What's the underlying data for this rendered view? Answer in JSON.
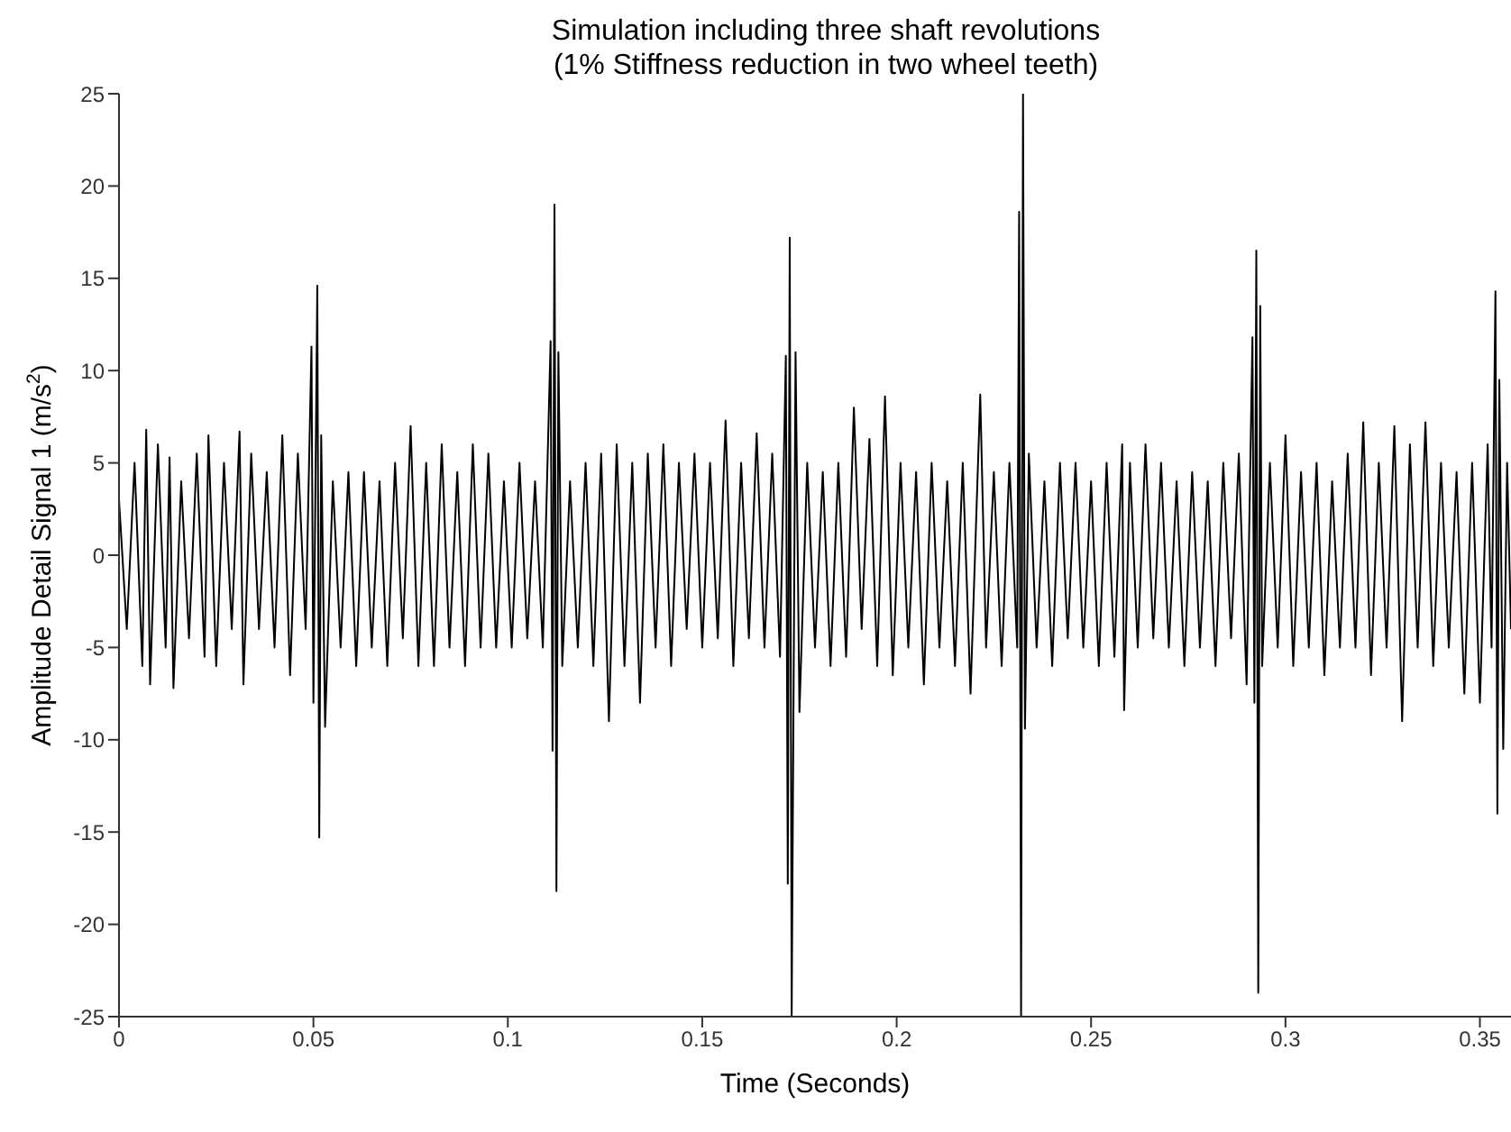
{
  "chart_data": {
    "type": "line",
    "title": "Simulation including three shaft revolutions",
    "subtitle": "(1% Stiffness reduction in two wheel teeth)",
    "xlabel": "Time (Seconds)",
    "ylabel": "Amplitude Detail Signal 1 (m/s$^{2}$)",
    "x": [
      0,
      0.002,
      0.004,
      0.006,
      0.007,
      0.008,
      0.01,
      0.012,
      0.013,
      0.014,
      0.016,
      0.018,
      0.02,
      0.022,
      0.023,
      0.025,
      0.027,
      0.029,
      0.031,
      0.032,
      0.034,
      0.036,
      0.038,
      0.04,
      0.042,
      0.044,
      0.046,
      0.048,
      0.0495,
      0.05,
      0.051,
      0.0515,
      0.052,
      0.053,
      0.055,
      0.057,
      0.059,
      0.061,
      0.063,
      0.065,
      0.067,
      0.069,
      0.071,
      0.073,
      0.075,
      0.077,
      0.079,
      0.081,
      0.083,
      0.085,
      0.087,
      0.089,
      0.091,
      0.093,
      0.095,
      0.097,
      0.099,
      0.101,
      0.103,
      0.105,
      0.107,
      0.109,
      0.111,
      0.1115,
      0.112,
      0.1125,
      0.113,
      0.114,
      0.116,
      0.118,
      0.12,
      0.122,
      0.124,
      0.126,
      0.128,
      0.13,
      0.132,
      0.134,
      0.136,
      0.138,
      0.14,
      0.142,
      0.144,
      0.146,
      0.148,
      0.15,
      0.152,
      0.154,
      0.156,
      0.158,
      0.16,
      0.162,
      0.164,
      0.166,
      0.168,
      0.17,
      0.1715,
      0.172,
      0.1725,
      0.173,
      0.174,
      0.175,
      0.177,
      0.179,
      0.181,
      0.183,
      0.185,
      0.187,
      0.189,
      0.191,
      0.193,
      0.195,
      0.197,
      0.199,
      0.201,
      0.203,
      0.205,
      0.207,
      0.209,
      0.211,
      0.213,
      0.215,
      0.217,
      0.219,
      0.2215,
      0.223,
      0.225,
      0.227,
      0.229,
      0.231,
      0.2315,
      0.232,
      0.2325,
      0.233,
      0.234,
      0.236,
      0.238,
      0.24,
      0.242,
      0.244,
      0.246,
      0.248,
      0.25,
      0.252,
      0.254,
      0.256,
      0.258,
      0.2585,
      0.26,
      0.262,
      0.264,
      0.266,
      0.268,
      0.27,
      0.272,
      0.274,
      0.276,
      0.278,
      0.28,
      0.282,
      0.284,
      0.286,
      0.288,
      0.29,
      0.2915,
      0.292,
      0.2925,
      0.293,
      0.2935,
      0.294,
      0.296,
      0.298,
      0.3,
      0.302,
      0.304,
      0.306,
      0.308,
      0.31,
      0.312,
      0.314,
      0.316,
      0.318,
      0.32,
      0.322,
      0.324,
      0.326,
      0.328,
      0.33,
      0.332,
      0.334,
      0.336,
      0.338,
      0.34,
      0.342,
      0.344,
      0.346,
      0.348,
      0.35,
      0.352,
      0.353,
      0.354,
      0.3545,
      0.355,
      0.356,
      0.357,
      0.358
    ],
    "series": [
      {
        "color": "#000000",
        "values": [
          3,
          -4,
          5,
          -6,
          6.8,
          -7,
          6,
          -5,
          5.3,
          -7.2,
          4,
          -4.5,
          5.5,
          -5.5,
          6.5,
          -6,
          5,
          -4,
          6.7,
          -7,
          5.5,
          -4,
          4.5,
          -5,
          6.5,
          -6.5,
          5.5,
          -4,
          11.3,
          -8,
          14.6,
          -15.3,
          6.5,
          -9.3,
          4,
          -5,
          4.5,
          -6,
          4.5,
          -5,
          4,
          -6,
          5,
          -4.5,
          7,
          -6,
          5,
          -6,
          6,
          -5,
          4.5,
          -6,
          6,
          -5,
          5.5,
          -5,
          4,
          -5,
          5,
          -4.5,
          4,
          -5,
          11.6,
          -10.6,
          19,
          -18.2,
          11,
          -6,
          4,
          -5,
          5,
          -6,
          5.5,
          -9,
          6,
          -6,
          5,
          -8,
          5.5,
          -5,
          6,
          -6,
          5,
          -4,
          5.5,
          -5,
          5,
          -4.5,
          7.3,
          -6,
          5,
          -4.5,
          6.6,
          -5,
          5.5,
          -5.5,
          10.8,
          -17.8,
          17.2,
          -25,
          11,
          -8.5,
          5,
          -5,
          4.5,
          -6,
          5,
          -5.5,
          8,
          -4,
          6.3,
          -6,
          8.6,
          -6.5,
          5,
          -5,
          4.5,
          -7,
          5,
          -5,
          4,
          -6,
          5,
          -7.5,
          8.7,
          -5,
          4.5,
          -6,
          5,
          -5,
          18.6,
          -25,
          25,
          -9.4,
          5.5,
          -5,
          4,
          -6,
          5,
          -4.5,
          5,
          -5,
          4,
          -6,
          5,
          -5.5,
          6,
          -8.4,
          5,
          -5,
          6,
          -4.5,
          5,
          -5,
          4,
          -6,
          4.5,
          -5,
          4,
          -6,
          5,
          -4.5,
          5.5,
          -7,
          11.8,
          -8,
          16.5,
          -23.7,
          13.5,
          -6,
          5,
          -5,
          6.5,
          -6,
          4.5,
          -5,
          5,
          -6.5,
          4,
          -5,
          5.5,
          -5,
          7.2,
          -6.5,
          5,
          -5,
          7,
          -9,
          6,
          -5,
          7.2,
          -6,
          5,
          -5,
          4.5,
          -7.5,
          5,
          -8,
          6,
          -5,
          14.3,
          -14,
          9.5,
          -10.5,
          5,
          -4
        ]
      }
    ],
    "xlim": [
      0,
      0.358
    ],
    "xticks": [
      0,
      0.05,
      0.1,
      0.15,
      0.2,
      0.25,
      0.3,
      0.35
    ],
    "ylim": [
      -25,
      25
    ],
    "yticks": [
      -25,
      -20,
      -15,
      -10,
      -5,
      0,
      5,
      10,
      15,
      20,
      25
    ],
    "grid": false,
    "legend": false,
    "marker": "none",
    "line_style": "solid"
  }
}
